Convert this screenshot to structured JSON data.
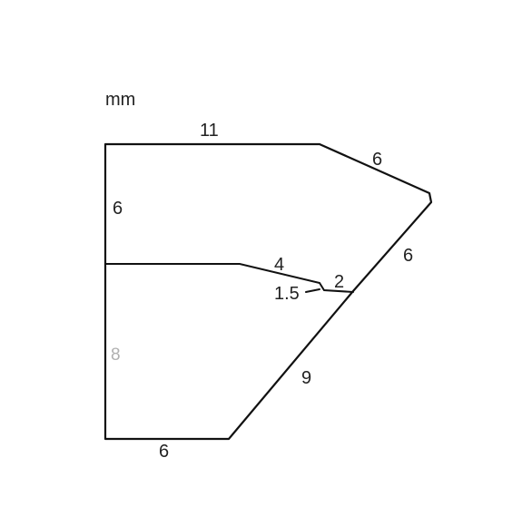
{
  "unit_label": "mm",
  "dimensions": {
    "top": "11",
    "upper_right_slant": "6",
    "left_upper": "6",
    "right_side": "6",
    "inner_slant": "4",
    "notch_small": "1.5",
    "notch_right": "2",
    "left_lower": "8",
    "lower_slant": "9",
    "bottom": "6"
  }
}
